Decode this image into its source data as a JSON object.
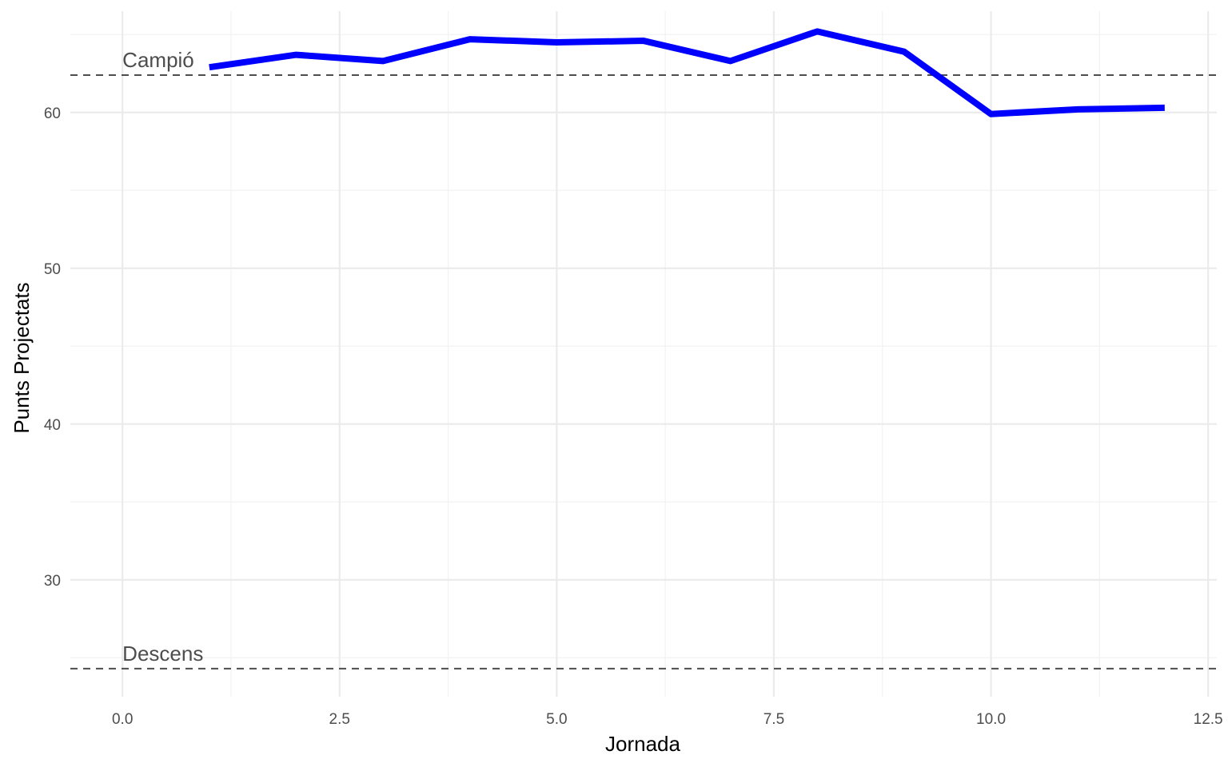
{
  "chart_data": {
    "type": "line",
    "title": "",
    "xlabel": "Jornada",
    "ylabel": "Punts Projectats",
    "xlim": [
      -0.6,
      12.6
    ],
    "ylim": [
      22.5,
      66.5
    ],
    "x_ticks": [
      0.0,
      2.5,
      5.0,
      7.5,
      10.0,
      12.5
    ],
    "x_tick_labels": [
      "0.0",
      "2.5",
      "5.0",
      "7.5",
      "10.0",
      "12.5"
    ],
    "y_ticks": [
      30,
      40,
      50,
      60
    ],
    "y_tick_labels": [
      "30",
      "40",
      "50",
      "60"
    ],
    "grid": true,
    "legend": "none",
    "series": [
      {
        "color": "#0000ff",
        "x": [
          1,
          2,
          3,
          4,
          5,
          6,
          7,
          8,
          9,
          10,
          11,
          12
        ],
        "y": [
          62.9,
          63.7,
          63.3,
          64.7,
          64.5,
          64.6,
          63.3,
          65.2,
          63.9,
          59.9,
          60.2,
          60.3
        ]
      }
    ],
    "reference_lines": [
      {
        "label": "Campió",
        "y": 62.4,
        "color": "#4d4d4d",
        "style": "dashed"
      },
      {
        "label": "Descens",
        "y": 24.3,
        "color": "#4d4d4d",
        "style": "dashed"
      }
    ]
  }
}
